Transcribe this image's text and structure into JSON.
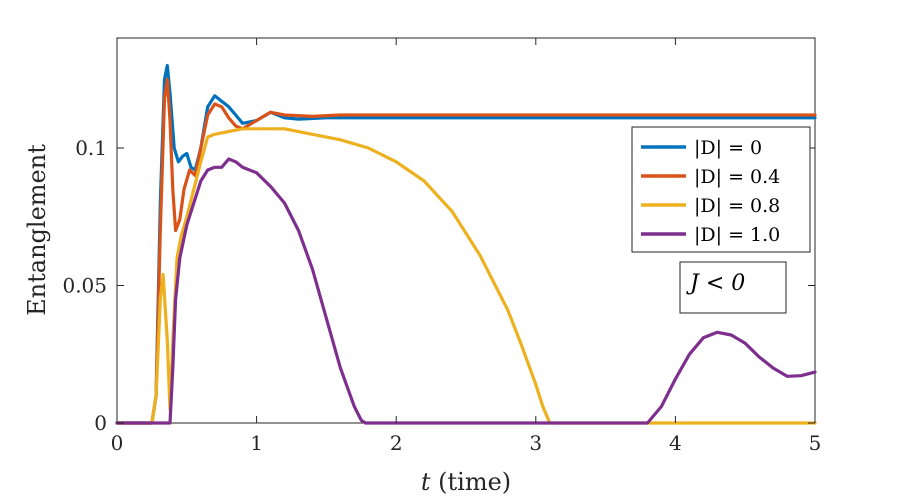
{
  "chart_data": {
    "type": "line",
    "xlabel": "t (time)",
    "ylabel": "Entanglement",
    "xlim": [
      0,
      5
    ],
    "ylim": [
      0,
      0.14
    ],
    "xticks": [
      0,
      1,
      2,
      3,
      4,
      5
    ],
    "xtick_labels": [
      "0",
      "1",
      "2",
      "3",
      "4",
      "5"
    ],
    "yticks": [
      0,
      0.05,
      0.1
    ],
    "ytick_labels": [
      "0",
      "0.05",
      "0.1"
    ],
    "grid": false,
    "legend_position": "top-right",
    "annotation": "J < 0",
    "series": [
      {
        "name": "|D| = 0",
        "color": "#0072BD",
        "x": [
          0,
          0.25,
          0.28,
          0.31,
          0.34,
          0.36,
          0.38,
          0.41,
          0.44,
          0.47,
          0.5,
          0.53,
          0.56,
          0.6,
          0.65,
          0.7,
          0.75,
          0.8,
          0.85,
          0.9,
          1.0,
          1.1,
          1.2,
          1.3,
          1.5,
          1.7,
          2.0,
          3.0,
          4.0,
          5.0
        ],
        "y": [
          0,
          0,
          0.01,
          0.08,
          0.125,
          0.13,
          0.12,
          0.1,
          0.095,
          0.097,
          0.098,
          0.093,
          0.092,
          0.1,
          0.115,
          0.119,
          0.117,
          0.115,
          0.112,
          0.109,
          0.11,
          0.113,
          0.111,
          0.1105,
          0.111,
          0.111,
          0.111,
          0.111,
          0.111,
          0.111
        ]
      },
      {
        "name": "|D| = 0.4",
        "color": "#D95319",
        "x": [
          0,
          0.25,
          0.28,
          0.31,
          0.34,
          0.36,
          0.38,
          0.4,
          0.42,
          0.45,
          0.48,
          0.52,
          0.56,
          0.6,
          0.65,
          0.7,
          0.75,
          0.8,
          0.85,
          0.9,
          1.0,
          1.1,
          1.2,
          1.4,
          1.6,
          2.0,
          3.0,
          4.0,
          5.0
        ],
        "y": [
          0,
          0,
          0.01,
          0.07,
          0.118,
          0.125,
          0.11,
          0.085,
          0.07,
          0.074,
          0.085,
          0.092,
          0.09,
          0.1,
          0.112,
          0.116,
          0.115,
          0.111,
          0.108,
          0.107,
          0.11,
          0.113,
          0.112,
          0.1115,
          0.112,
          0.112,
          0.112,
          0.112,
          0.112
        ]
      },
      {
        "name": "|D| = 0.8",
        "color": "#EDB120",
        "x": [
          0,
          0.25,
          0.28,
          0.31,
          0.33,
          0.36,
          0.38,
          0.4,
          0.43,
          0.46,
          0.5,
          0.55,
          0.6,
          0.65,
          0.7,
          0.8,
          0.9,
          1.0,
          1.2,
          1.4,
          1.6,
          1.8,
          2.0,
          2.2,
          2.4,
          2.6,
          2.8,
          2.9,
          3.0,
          3.05,
          3.1,
          3.5,
          4.0,
          5.0
        ],
        "y": [
          0,
          0,
          0.01,
          0.045,
          0.054,
          0.03,
          0.005,
          0.03,
          0.06,
          0.068,
          0.075,
          0.085,
          0.095,
          0.104,
          0.105,
          0.106,
          0.107,
          0.107,
          0.107,
          0.105,
          0.103,
          0.1,
          0.095,
          0.088,
          0.077,
          0.061,
          0.041,
          0.028,
          0.014,
          0.006,
          0,
          0,
          0,
          0
        ]
      },
      {
        "name": "|D| = 1.0",
        "color": "#7E2F8E",
        "x": [
          0,
          0.38,
          0.4,
          0.42,
          0.45,
          0.5,
          0.55,
          0.6,
          0.65,
          0.7,
          0.75,
          0.8,
          0.85,
          0.9,
          1.0,
          1.1,
          1.2,
          1.3,
          1.4,
          1.5,
          1.6,
          1.7,
          1.75,
          1.78,
          1.8,
          2.5,
          3.0,
          3.5,
          3.8,
          3.9,
          4.0,
          4.1,
          4.2,
          4.3,
          4.4,
          4.5,
          4.6,
          4.7,
          4.8,
          4.9,
          5.0
        ],
        "y": [
          0,
          0,
          0.02,
          0.045,
          0.06,
          0.072,
          0.08,
          0.088,
          0.092,
          0.093,
          0.093,
          0.096,
          0.095,
          0.093,
          0.091,
          0.086,
          0.08,
          0.07,
          0.056,
          0.038,
          0.02,
          0.006,
          0.001,
          0,
          0,
          0,
          0,
          0,
          0,
          0.006,
          0.016,
          0.025,
          0.031,
          0.033,
          0.032,
          0.029,
          0.024,
          0.02,
          0.017,
          0.0172,
          0.0185
        ]
      }
    ]
  }
}
